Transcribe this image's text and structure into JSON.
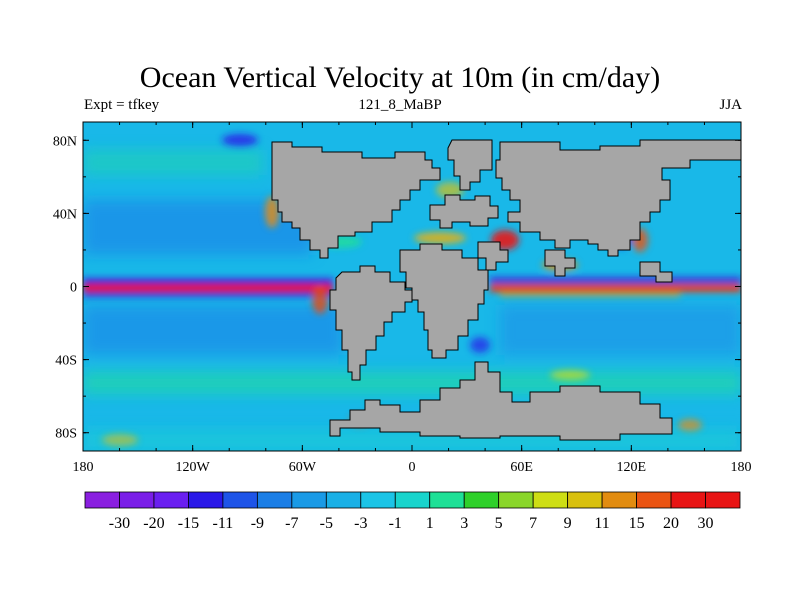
{
  "title": "Ocean Vertical Velocity at 10m (in cm/day)",
  "subtitle_left": "Expt = tfkey",
  "subtitle_center": "121_8_MaBP",
  "subtitle_right": "JJA",
  "map": {
    "projection": "cylindrical-equidistant",
    "lon_range": [
      -180,
      180
    ],
    "lat_range": [
      -90,
      90
    ],
    "lon_ticks": [
      {
        "value": -180,
        "label": "180"
      },
      {
        "value": -120,
        "label": "120W"
      },
      {
        "value": -60,
        "label": "60W"
      },
      {
        "value": 0,
        "label": "0"
      },
      {
        "value": 60,
        "label": "60E"
      },
      {
        "value": 120,
        "label": "120E"
      },
      {
        "value": 180,
        "label": "180"
      }
    ],
    "lat_ticks": [
      {
        "value": 80,
        "label": "80N"
      },
      {
        "value": 40,
        "label": "40N"
      },
      {
        "value": 0,
        "label": "0"
      },
      {
        "value": -40,
        "label": "40S"
      },
      {
        "value": -80,
        "label": "80S"
      }
    ],
    "land_color": "#a6a6a6",
    "background_field_color": "#19b8e8"
  },
  "colorbar": {
    "labels": [
      "-30",
      "-20",
      "-15",
      "-11",
      "-9",
      "-7",
      "-5",
      "-3",
      "-1",
      "1",
      "3",
      "5",
      "7",
      "9",
      "11",
      "15",
      "20",
      "30"
    ],
    "colors": [
      "#8a1fe0",
      "#7a1ee8",
      "#6a1ff0",
      "#2a18e8",
      "#1e54e8",
      "#1b7ee6",
      "#1a9ae6",
      "#1ab0e6",
      "#1bc4e6",
      "#18d4cc",
      "#1ee096",
      "#2ed02a",
      "#8ad62a",
      "#cede14",
      "#d8c00e",
      "#e28c10",
      "#ea5412",
      "#e81414"
    ]
  }
}
